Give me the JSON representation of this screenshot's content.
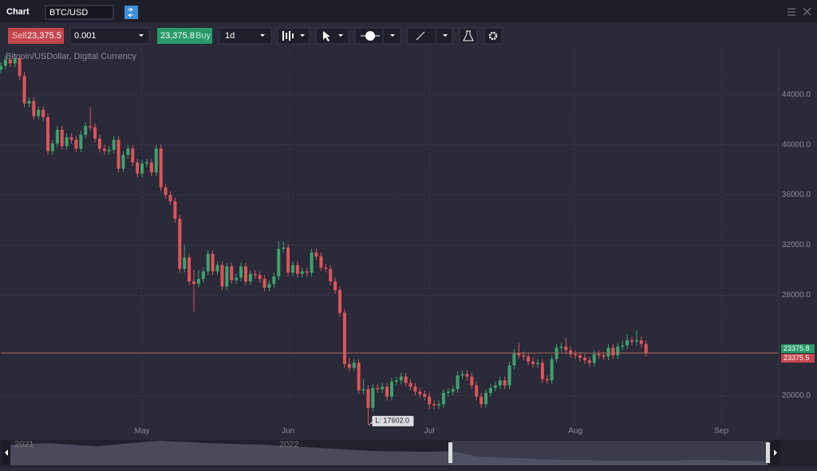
{
  "header": {
    "title": "Chart",
    "symbol": "BTC/USD"
  },
  "toolbar": {
    "sell_label": "Sell",
    "sell_price": "23,375.5",
    "quantity": "0.001",
    "buy_price": "23,375.8",
    "buy_label": "Buy",
    "interval": "1d"
  },
  "navigator": {
    "labels": [
      "2021",
      "2022"
    ]
  },
  "chart_data": {
    "type": "candlestick",
    "title": "Bitcoin/USDollar, Digital Currency",
    "open": [
      46000,
      46300,
      46800,
      46500,
      46900,
      45500,
      43300,
      43500,
      42300,
      42800,
      42200,
      39500,
      40100,
      41200,
      39900,
      40600,
      40400,
      39700,
      40800,
      41500,
      41400,
      40500,
      39700,
      39500,
      39600,
      40400,
      38100,
      39200,
      39700,
      38600,
      37700,
      38500,
      38600,
      37800,
      39700,
      36600,
      36000,
      35500,
      34100,
      30100,
      31000,
      29100,
      28900,
      29300,
      29900,
      31300,
      29900,
      30400,
      28700,
      30300,
      29200,
      29400,
      30300,
      29100,
      29700,
      29600,
      29300,
      28600,
      28900,
      29500,
      31700,
      31800,
      29800,
      30400,
      29700,
      29900,
      29800,
      31400,
      31100,
      30200,
      30100,
      29100,
      28400,
      26600,
      22500,
      22200,
      22600,
      20400,
      20500,
      19000,
      20600,
      20500,
      20700,
      19900,
      21100,
      21200,
      21500,
      21000,
      20700,
      20300,
      20100,
      19900,
      19300,
      19200,
      19300,
      20200,
      20300,
      20500,
      21600,
      21700,
      21500,
      20800,
      19900,
      19300,
      20200,
      20600,
      20800,
      21200,
      20800,
      22400,
      23400,
      23200,
      23100,
      22700,
      22500,
      22600,
      21300,
      21200,
      22900,
      23800,
      23900,
      23600,
      23300,
      23200,
      23000,
      22800,
      22600,
      23300,
      23200,
      23100,
      23800,
      23200,
      23900,
      24000,
      24400,
      24300,
      24400,
      24100
    ],
    "high": [
      46600,
      47100,
      47100,
      47200,
      47200,
      45800,
      43800,
      43800,
      43100,
      43100,
      42500,
      40400,
      41500,
      41500,
      40900,
      40900,
      40700,
      41100,
      41800,
      43000,
      41700,
      40800,
      40000,
      39900,
      40700,
      40700,
      39500,
      40000,
      40000,
      38900,
      38800,
      38900,
      38900,
      40000,
      40000,
      36900,
      36300,
      35800,
      34400,
      32000,
      31300,
      30000,
      30000,
      30200,
      31600,
      31600,
      30700,
      30700,
      30600,
      30600,
      29700,
      30600,
      30600,
      30000,
      30000,
      29900,
      29600,
      29200,
      29800,
      32300,
      32300,
      32100,
      30700,
      30700,
      30200,
      30200,
      31700,
      31700,
      31400,
      30500,
      30400,
      29400,
      28700,
      26900,
      23000,
      22900,
      22900,
      21300,
      20800,
      20900,
      20900,
      21000,
      21000,
      21400,
      21500,
      21800,
      21800,
      21300,
      21000,
      20600,
      20400,
      20200,
      19600,
      19600,
      20500,
      20600,
      20800,
      21900,
      22000,
      22000,
      21800,
      21100,
      20200,
      20500,
      20900,
      21100,
      21500,
      21500,
      22700,
      23700,
      24200,
      23500,
      23400,
      23000,
      22900,
      22900,
      21600,
      23200,
      24100,
      24200,
      24600,
      23900,
      23600,
      23500,
      23300,
      23100,
      23600,
      23600,
      23500,
      24100,
      24100,
      24200,
      24400,
      24900,
      24700,
      25200,
      24700,
      24400
    ],
    "low": [
      45700,
      46000,
      46200,
      46200,
      45200,
      43000,
      43000,
      42000,
      42000,
      41900,
      39200,
      39200,
      39800,
      39600,
      39600,
      40100,
      39400,
      39400,
      40500,
      41100,
      40200,
      39400,
      39200,
      39200,
      39300,
      37800,
      37800,
      38900,
      38300,
      37400,
      37400,
      38200,
      37500,
      37500,
      36300,
      35700,
      35200,
      33800,
      29800,
      29800,
      28800,
      26700,
      28600,
      29000,
      29600,
      29600,
      29600,
      28400,
      28400,
      28900,
      28900,
      29100,
      28800,
      28800,
      29300,
      29000,
      28300,
      28300,
      28600,
      29200,
      31400,
      29500,
      29500,
      29400,
      29400,
      29500,
      29500,
      30800,
      29900,
      29800,
      28800,
      28100,
      26300,
      22200,
      21900,
      21900,
      20100,
      20100,
      17602,
      18700,
      20200,
      20200,
      19600,
      19600,
      20800,
      20900,
      20700,
      20400,
      20000,
      19800,
      19600,
      18900,
      18900,
      18900,
      19000,
      19900,
      20000,
      20200,
      21300,
      21200,
      20500,
      19600,
      19000,
      19000,
      19900,
      20300,
      20500,
      20500,
      20500,
      22100,
      22900,
      22800,
      22400,
      22200,
      22200,
      21000,
      20900,
      20900,
      22600,
      23500,
      23300,
      23000,
      22900,
      22700,
      22500,
      22300,
      22300,
      22900,
      22800,
      22800,
      22900,
      22900,
      23600,
      23700,
      24000,
      24000,
      23800,
      23100
    ],
    "close": [
      46300,
      46800,
      46500,
      46900,
      45500,
      43300,
      43500,
      42300,
      42800,
      42200,
      39500,
      40100,
      41200,
      39900,
      40600,
      40400,
      39700,
      40800,
      41500,
      41400,
      40500,
      39700,
      39500,
      39600,
      40400,
      38100,
      39200,
      39700,
      38600,
      37700,
      38500,
      38600,
      37800,
      39700,
      36600,
      36000,
      35500,
      34100,
      30100,
      31000,
      29100,
      28900,
      29300,
      29900,
      31300,
      29900,
      30400,
      28700,
      30300,
      29200,
      29400,
      30300,
      29100,
      29700,
      29600,
      29300,
      28600,
      28900,
      29500,
      31700,
      31800,
      29800,
      30400,
      29700,
      29900,
      29800,
      31400,
      31100,
      30200,
      30100,
      29100,
      28400,
      26600,
      22500,
      22200,
      22600,
      20400,
      20500,
      19000,
      20600,
      20500,
      20700,
      19900,
      21100,
      21200,
      21500,
      21000,
      20700,
      20300,
      20100,
      19900,
      19300,
      19200,
      19300,
      20200,
      20300,
      20500,
      21600,
      21700,
      21500,
      20800,
      19900,
      19300,
      20200,
      20600,
      20800,
      21200,
      20800,
      22400,
      23400,
      23200,
      23100,
      22700,
      22500,
      22600,
      21300,
      21200,
      22900,
      23800,
      23900,
      23600,
      23300,
      23200,
      23000,
      22800,
      22600,
      23300,
      23200,
      23100,
      23800,
      23200,
      23900,
      24000,
      24400,
      24300,
      24400,
      24100,
      23376
    ],
    "up_color": "#3da36e",
    "down_color": "#e0545b",
    "xlim": [
      0,
      165
    ],
    "xticks": [
      {
        "value": 30,
        "label": "May"
      },
      {
        "value": 61,
        "label": "Jun"
      },
      {
        "value": 91,
        "label": "Jul"
      },
      {
        "value": 122,
        "label": "Aug"
      },
      {
        "value": 153,
        "label": "Sep"
      }
    ],
    "ylim": [
      16700,
      47680
    ],
    "yticks": [
      {
        "value": 20000,
        "label": "20000.0"
      },
      {
        "value": 28000,
        "label": "28000.0"
      },
      {
        "value": 32000,
        "label": "32000.0"
      },
      {
        "value": 36000,
        "label": "36000.0"
      },
      {
        "value": 40000,
        "label": "40000.0"
      },
      {
        "value": 44000,
        "label": "44000.0"
      }
    ],
    "grid": true,
    "ask": 23375.8,
    "bid": 23375.5,
    "low_label": "L: 17602.0"
  }
}
